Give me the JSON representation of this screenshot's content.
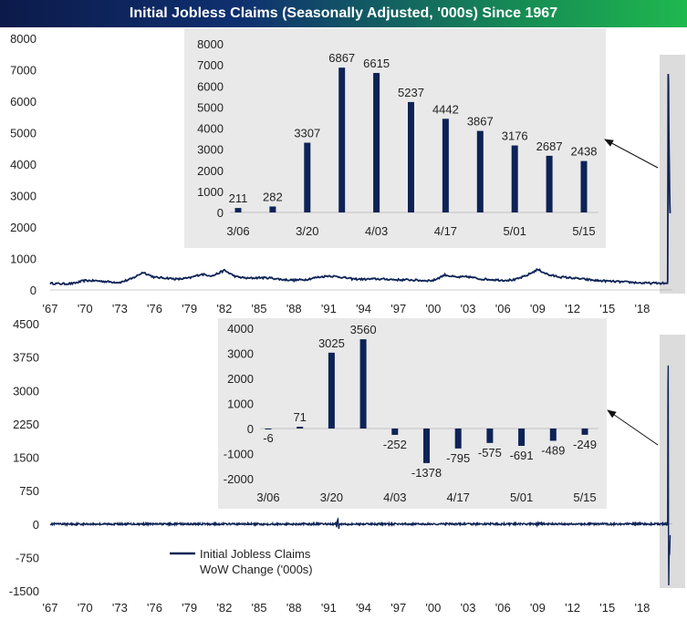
{
  "title": "Initial Jobless Claims (Seasonally Adjusted, '000s) Since 1967",
  "colors": {
    "series": "#0d2356",
    "inset_bg": "#e9e9e9",
    "highlight_bg": "#dcdcdc"
  },
  "legend": {
    "line1": "Initial Jobless Claims",
    "line2": "WoW Change ('000s)"
  },
  "chart_data": [
    {
      "type": "line",
      "name": "Initial Jobless Claims (level)",
      "x_ticks": [
        "'67",
        "'70",
        "'73",
        "'76",
        "'79",
        "'82",
        "'85",
        "'88",
        "'91",
        "'94",
        "'97",
        "'00",
        "'03",
        "'06",
        "'09",
        "'12",
        "'15",
        "'18"
      ],
      "y_ticks": [
        0,
        1000,
        2000,
        3000,
        4000,
        5000,
        6000,
        7000,
        8000
      ],
      "ylim": [
        0,
        8000
      ],
      "xlim": [
        1967,
        2020.6
      ],
      "series_annual": [
        [
          1967,
          210
        ],
        [
          1968,
          195
        ],
        [
          1969,
          205
        ],
        [
          1970,
          300
        ],
        [
          1971,
          290
        ],
        [
          1972,
          260
        ],
        [
          1973,
          240
        ],
        [
          1974,
          350
        ],
        [
          1975,
          560
        ],
        [
          1976,
          400
        ],
        [
          1977,
          380
        ],
        [
          1978,
          340
        ],
        [
          1979,
          380
        ],
        [
          1980,
          500
        ],
        [
          1981,
          450
        ],
        [
          1982,
          620
        ],
        [
          1983,
          420
        ],
        [
          1984,
          370
        ],
        [
          1985,
          390
        ],
        [
          1986,
          380
        ],
        [
          1987,
          330
        ],
        [
          1988,
          310
        ],
        [
          1989,
          330
        ],
        [
          1990,
          400
        ],
        [
          1991,
          450
        ],
        [
          1992,
          410
        ],
        [
          1993,
          350
        ],
        [
          1994,
          340
        ],
        [
          1995,
          350
        ],
        [
          1996,
          340
        ],
        [
          1997,
          320
        ],
        [
          1998,
          320
        ],
        [
          1999,
          300
        ],
        [
          2000,
          300
        ],
        [
          2001,
          480
        ],
        [
          2002,
          400
        ],
        [
          2003,
          420
        ],
        [
          2004,
          350
        ],
        [
          2005,
          330
        ],
        [
          2006,
          310
        ],
        [
          2007,
          320
        ],
        [
          2008,
          450
        ],
        [
          2009,
          650
        ],
        [
          2010,
          470
        ],
        [
          2011,
          410
        ],
        [
          2012,
          380
        ],
        [
          2013,
          340
        ],
        [
          2014,
          300
        ],
        [
          2015,
          280
        ],
        [
          2016,
          260
        ],
        [
          2017,
          245
        ],
        [
          2018,
          220
        ],
        [
          2019,
          215
        ],
        [
          2020.15,
          211
        ]
      ],
      "inset": {
        "type": "bar",
        "categories": [
          "3/06",
          "3/13",
          "3/20",
          "3/27",
          "4/03",
          "4/10",
          "4/17",
          "4/24",
          "5/01",
          "5/08",
          "5/15"
        ],
        "x_tick_labels": [
          "3/06",
          "3/20",
          "4/03",
          "4/17",
          "5/01",
          "5/15"
        ],
        "values": [
          211,
          282,
          3307,
          6867,
          6615,
          5237,
          4442,
          3867,
          3176,
          2687,
          2438
        ],
        "y_ticks": [
          0,
          1000,
          2000,
          3000,
          4000,
          5000,
          6000,
          7000,
          8000
        ],
        "ylim": [
          0,
          8000
        ]
      }
    },
    {
      "type": "line",
      "name": "Initial Jobless Claims WoW Change ('000s)",
      "x_ticks": [
        "'67",
        "'70",
        "'73",
        "'76",
        "'79",
        "'82",
        "'85",
        "'88",
        "'91",
        "'94",
        "'97",
        "'00",
        "'03",
        "'06",
        "'09",
        "'12",
        "'15",
        "'18"
      ],
      "y_ticks": [
        -1500,
        -750,
        0,
        750,
        1500,
        2250,
        3000,
        3750,
        4500
      ],
      "ylim": [
        -1500,
        4500
      ],
      "xlim": [
        1967,
        2020.6
      ],
      "inset": {
        "type": "bar",
        "categories": [
          "3/06",
          "3/13",
          "3/20",
          "3/27",
          "4/03",
          "4/10",
          "4/17",
          "4/24",
          "5/01",
          "5/08",
          "5/15"
        ],
        "x_tick_labels": [
          "3/06",
          "3/20",
          "4/03",
          "4/17",
          "5/01",
          "5/15"
        ],
        "values": [
          -6,
          71,
          3025,
          3560,
          -252,
          -1378,
          -795,
          -575,
          -691,
          -489,
          -249
        ],
        "y_ticks": [
          -2000,
          -1000,
          0,
          1000,
          2000,
          3000,
          4000
        ],
        "ylim": [
          -2000,
          4000
        ]
      }
    }
  ]
}
